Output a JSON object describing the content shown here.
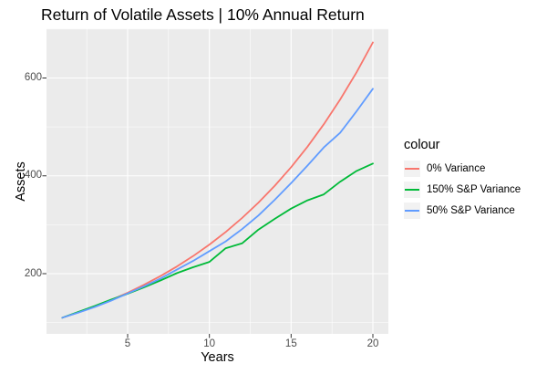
{
  "title": "Return of Volatile Assets | 10% Annual Return",
  "x_axis": {
    "label": "Years",
    "ticks": [
      "5",
      "10",
      "15",
      "20"
    ]
  },
  "y_axis": {
    "label": "Assets",
    "ticks": [
      "200",
      "400",
      "600"
    ]
  },
  "legend": {
    "title": "colour",
    "entries": [
      {
        "label": "0% Variance",
        "color": "#F8766D"
      },
      {
        "label": "150% S&P Variance",
        "color": "#00BA38"
      },
      {
        "label": "50% S&P Variance",
        "color": "#619CFF"
      }
    ]
  },
  "style": {
    "panel_bg": "#EBEBEB",
    "grid_color": "#FFFFFF",
    "tick_mark_color": "#333333",
    "tick_text_color": "#4D4D4D",
    "legend_key_bg": "#F2F2F2"
  },
  "chart_data": {
    "type": "line",
    "title": "Return of Volatile Assets | 10% Annual Return",
    "xlabel": "Years",
    "ylabel": "Assets",
    "x": [
      1,
      2,
      3,
      4,
      5,
      6,
      7,
      8,
      9,
      10,
      11,
      12,
      13,
      14,
      15,
      16,
      17,
      18,
      19,
      20
    ],
    "series": [
      {
        "name": "0% Variance",
        "color": "#F8766D",
        "values": [
          110,
          121,
          133.1,
          146.4,
          161.1,
          177.2,
          194.9,
          214.4,
          235.8,
          259.4,
          285.3,
          313.8,
          345.2,
          379.7,
          417.7,
          459.5,
          505.4,
          555.9,
          611.6,
          672.7
        ]
      },
      {
        "name": "150% S&P Variance",
        "color": "#00BA38",
        "values": [
          110,
          122,
          134,
          147,
          159,
          172,
          186,
          201,
          213,
          224,
          252,
          262,
          290,
          312,
          333,
          350,
          362,
          388,
          410,
          425
        ]
      },
      {
        "name": "50% S&P Variance",
        "color": "#619CFF",
        "values": [
          110,
          120.5,
          132,
          145,
          159.5,
          174,
          190,
          208,
          226,
          246,
          266,
          291,
          319,
          351,
          385,
          421,
          458,
          488,
          532,
          578
        ]
      }
    ],
    "x_ticks": [
      5,
      10,
      15,
      20
    ],
    "y_ticks": [
      200,
      400,
      600
    ],
    "x_minor_ticks": [
      2.5,
      7.5,
      12.5,
      17.5
    ],
    "y_minor_ticks": [
      100,
      300,
      500,
      700
    ],
    "xlim": [
      0.05,
      20.95
    ],
    "ylim": [
      77,
      701
    ],
    "grid": true,
    "legend_position": "right"
  }
}
